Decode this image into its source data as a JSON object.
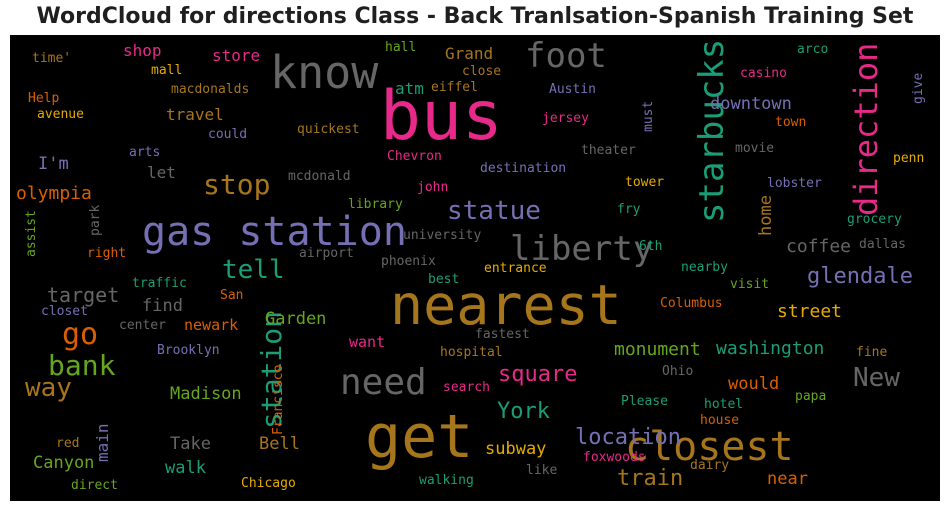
{
  "chart_data": {
    "type": "wordcloud",
    "title": "WordCloud for directions Class - Back Tranlsation-Spanish Training Set",
    "background": "#000000",
    "palette": [
      "#1b9e77",
      "#d95f02",
      "#7570b3",
      "#e7298a",
      "#66a61e",
      "#e6ab02",
      "#a6761d",
      "#666666"
    ],
    "words": [
      {
        "text": "bus",
        "weight": 1.0,
        "color": "#e7298a"
      },
      {
        "text": "get",
        "weight": 0.92,
        "color": "#a6761d"
      },
      {
        "text": "nearest",
        "weight": 0.85,
        "color": "#a6761d"
      },
      {
        "text": "gas station",
        "weight": 0.62,
        "color": "#7570b3"
      },
      {
        "text": "closest",
        "weight": 0.62,
        "color": "#a6761d"
      },
      {
        "text": "know",
        "weight": 0.58,
        "color": "#666666"
      },
      {
        "text": "need",
        "weight": 0.48,
        "color": "#666666"
      },
      {
        "text": "starbucks",
        "weight": 0.48,
        "color": "#1b9e77",
        "vertical": true
      },
      {
        "text": "direction",
        "weight": 0.46,
        "color": "#e7298a",
        "vertical": true
      },
      {
        "text": "liberty",
        "weight": 0.45,
        "color": "#666666"
      },
      {
        "text": "foot",
        "weight": 0.44,
        "color": "#666666"
      },
      {
        "text": "station",
        "weight": 0.38,
        "color": "#1b9e77",
        "vertical": true
      },
      {
        "text": "bank",
        "weight": 0.36,
        "color": "#66a61e"
      },
      {
        "text": "stop",
        "weight": 0.36,
        "color": "#a6761d"
      },
      {
        "text": "go",
        "weight": 0.35,
        "color": "#d95f02"
      },
      {
        "text": "way",
        "weight": 0.33,
        "color": "#a6761d"
      },
      {
        "text": "tell",
        "weight": 0.32,
        "color": "#1b9e77"
      },
      {
        "text": "statue",
        "weight": 0.32,
        "color": "#7570b3"
      },
      {
        "text": "New",
        "weight": 0.31,
        "color": "#666666"
      },
      {
        "text": "York",
        "weight": 0.28,
        "color": "#1b9e77"
      },
      {
        "text": "square",
        "weight": 0.28,
        "color": "#e7298a"
      },
      {
        "text": "location",
        "weight": 0.28,
        "color": "#7570b3"
      },
      {
        "text": "train",
        "weight": 0.28,
        "color": "#a6761d"
      },
      {
        "text": "glendale",
        "weight": 0.27,
        "color": "#7570b3"
      },
      {
        "text": "target",
        "weight": 0.26,
        "color": "#666666"
      },
      {
        "text": "home",
        "weight": 0.2,
        "color": "#a6761d",
        "vertical": true
      },
      {
        "text": "olympia",
        "weight": 0.22,
        "color": "#d95f02"
      },
      {
        "text": "street",
        "weight": 0.22,
        "color": "#e6ab02"
      },
      {
        "text": "coffee",
        "weight": 0.21,
        "color": "#666666"
      },
      {
        "text": "washington",
        "weight": 0.21,
        "color": "#1b9e77"
      },
      {
        "text": "monument",
        "weight": 0.21,
        "color": "#66a61e"
      },
      {
        "text": "Garden",
        "weight": 0.2,
        "color": "#66a61e"
      },
      {
        "text": "downtown",
        "weight": 0.2,
        "color": "#7570b3"
      },
      {
        "text": "Madison",
        "weight": 0.2,
        "color": "#66a61e"
      },
      {
        "text": "Bell",
        "weight": 0.2,
        "color": "#a6761d"
      },
      {
        "text": "Canyon",
        "weight": 0.2,
        "color": "#66a61e"
      },
      {
        "text": "subway",
        "weight": 0.2,
        "color": "#e6ab02"
      },
      {
        "text": "Take",
        "weight": 0.2,
        "color": "#666666"
      },
      {
        "text": "walk",
        "weight": 0.2,
        "color": "#1b9e77"
      },
      {
        "text": "would",
        "weight": 0.2,
        "color": "#d95f02"
      },
      {
        "text": "near",
        "weight": 0.19,
        "color": "#d95f02"
      },
      {
        "text": "main",
        "weight": 0.18,
        "color": "#7570b3",
        "vertical": true
      },
      {
        "text": "find",
        "weight": 0.18,
        "color": "#666666"
      },
      {
        "text": "I'm",
        "weight": 0.18,
        "color": "#7570b3"
      },
      {
        "text": "travel",
        "weight": 0.18,
        "color": "#a6761d"
      },
      {
        "text": "Grand",
        "weight": 0.18,
        "color": "#a6761d"
      },
      {
        "text": "shop",
        "weight": 0.17,
        "color": "#e7298a"
      },
      {
        "text": "store",
        "weight": 0.17,
        "color": "#e7298a"
      },
      {
        "text": "atm",
        "weight": 0.17,
        "color": "#1b9e77"
      },
      {
        "text": "let",
        "weight": 0.17,
        "color": "#666666"
      },
      {
        "text": "newark",
        "weight": 0.16,
        "color": "#d95f02"
      },
      {
        "text": "want",
        "weight": 0.16,
        "color": "#e7298a"
      },
      {
        "text": "Francisco",
        "weight": 0.14,
        "color": "#d95f02",
        "vertical": true
      },
      {
        "text": "quickest",
        "weight": 0.14,
        "color": "#a6761d"
      },
      {
        "text": "mcdonald",
        "weight": 0.14,
        "color": "#666666"
      },
      {
        "text": "Chevron",
        "weight": 0.14,
        "color": "#e7298a"
      },
      {
        "text": "university",
        "weight": 0.14,
        "color": "#666666"
      },
      {
        "text": "phoenix",
        "weight": 0.14,
        "color": "#666666"
      },
      {
        "text": "airport",
        "weight": 0.14,
        "color": "#666666"
      },
      {
        "text": "entrance",
        "weight": 0.14,
        "color": "#e6ab02"
      },
      {
        "text": "destination",
        "weight": 0.14,
        "color": "#7570b3"
      },
      {
        "text": "eiffel",
        "weight": 0.14,
        "color": "#a6761d"
      },
      {
        "text": "Austin",
        "weight": 0.14,
        "color": "#7570b3"
      },
      {
        "text": "jersey",
        "weight": 0.14,
        "color": "#e7298a"
      },
      {
        "text": "theater",
        "weight": 0.14,
        "color": "#666666"
      },
      {
        "text": "movie",
        "weight": 0.14,
        "color": "#666666"
      },
      {
        "text": "tower",
        "weight": 0.14,
        "color": "#e6ab02"
      },
      {
        "text": "lobster",
        "weight": 0.14,
        "color": "#7570b3"
      },
      {
        "text": "penn",
        "weight": 0.14,
        "color": "#e6ab02"
      },
      {
        "text": "grocery",
        "weight": 0.14,
        "color": "#1b9e77"
      },
      {
        "text": "dallas",
        "weight": 0.14,
        "color": "#666666"
      },
      {
        "text": "nearby",
        "weight": 0.14,
        "color": "#1b9e77"
      },
      {
        "text": "visit",
        "weight": 0.14,
        "color": "#66a61e"
      },
      {
        "text": "Columbus",
        "weight": 0.14,
        "color": "#d95f02"
      },
      {
        "text": "fastest",
        "weight": 0.14,
        "color": "#666666"
      },
      {
        "text": "hospital",
        "weight": 0.14,
        "color": "#a6761d"
      },
      {
        "text": "search",
        "weight": 0.14,
        "color": "#e7298a"
      },
      {
        "text": "Ohio",
        "weight": 0.14,
        "color": "#666666"
      },
      {
        "text": "Please",
        "weight": 0.14,
        "color": "#1b9e77"
      },
      {
        "text": "hotel",
        "weight": 0.14,
        "color": "#1b9e77"
      },
      {
        "text": "house",
        "weight": 0.14,
        "color": "#d95f02"
      },
      {
        "text": "papa",
        "weight": 0.14,
        "color": "#66a61e"
      },
      {
        "text": "fine",
        "weight": 0.14,
        "color": "#a6761d"
      },
      {
        "text": "dairy",
        "weight": 0.14,
        "color": "#a6761d"
      },
      {
        "text": "foxwoods",
        "weight": 0.14,
        "color": "#e7298a"
      },
      {
        "text": "like",
        "weight": 0.14,
        "color": "#666666"
      },
      {
        "text": "walking",
        "weight": 0.14,
        "color": "#1b9e77"
      },
      {
        "text": "Chicago",
        "weight": 0.14,
        "color": "#e6ab02"
      },
      {
        "text": "direct",
        "weight": 0.14,
        "color": "#66a61e"
      },
      {
        "text": "red",
        "weight": 0.14,
        "color": "#a6761d"
      },
      {
        "text": "Brooklyn",
        "weight": 0.14,
        "color": "#7570b3"
      },
      {
        "text": "center",
        "weight": 0.14,
        "color": "#666666"
      },
      {
        "text": "closet",
        "weight": 0.14,
        "color": "#7570b3"
      },
      {
        "text": "San",
        "weight": 0.14,
        "color": "#d95f02"
      },
      {
        "text": "traffic",
        "weight": 0.14,
        "color": "#1b9e77"
      },
      {
        "text": "right",
        "weight": 0.14,
        "color": "#d95f02"
      },
      {
        "text": "best",
        "weight": 0.14,
        "color": "#1b9e77"
      },
      {
        "text": "library",
        "weight": 0.14,
        "color": "#66a61e"
      },
      {
        "text": "john",
        "weight": 0.14,
        "color": "#e7298a"
      },
      {
        "text": "fry",
        "weight": 0.14,
        "color": "#1b9e77"
      },
      {
        "text": "6th",
        "weight": 0.14,
        "color": "#1b9e77"
      },
      {
        "text": "arts",
        "weight": 0.14,
        "color": "#7570b3"
      },
      {
        "text": "could",
        "weight": 0.14,
        "color": "#7570b3"
      },
      {
        "text": "avenue",
        "weight": 0.14,
        "color": "#e6ab02"
      },
      {
        "text": "Help",
        "weight": 0.14,
        "color": "#d95f02"
      },
      {
        "text": "macdonalds",
        "weight": 0.14,
        "color": "#a6761d"
      },
      {
        "text": "mall",
        "weight": 0.14,
        "color": "#e6ab02"
      },
      {
        "text": "time'",
        "weight": 0.14,
        "color": "#a6761d"
      },
      {
        "text": "hall",
        "weight": 0.14,
        "color": "#66a61e"
      },
      {
        "text": "close",
        "weight": 0.14,
        "color": "#a6761d"
      },
      {
        "text": "arco",
        "weight": 0.14,
        "color": "#1b9e77"
      },
      {
        "text": "casino",
        "weight": 0.14,
        "color": "#e7298a"
      },
      {
        "text": "town",
        "weight": 0.14,
        "color": "#d95f02"
      },
      {
        "text": "must",
        "weight": 0.13,
        "color": "#7570b3",
        "vertical": true
      },
      {
        "text": "give",
        "weight": 0.13,
        "color": "#7570b3",
        "vertical": true
      },
      {
        "text": "assist",
        "weight": 0.13,
        "color": "#66a61e",
        "vertical": true
      },
      {
        "text": "park",
        "weight": 0.13,
        "color": "#666666",
        "vertical": true
      }
    ]
  }
}
